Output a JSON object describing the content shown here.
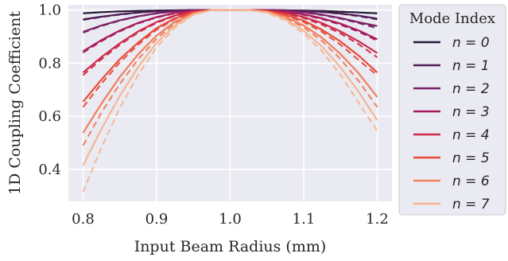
{
  "chart_data": {
    "type": "line",
    "title": "",
    "xlabel": "Input Beam Radius (mm)",
    "ylabel": "1D Coupling Coefficient",
    "xlim": [
      0.78,
      1.22
    ],
    "ylim": [
      0.28,
      1.02
    ],
    "xticks": [
      0.8,
      0.9,
      1.0,
      1.1,
      1.2
    ],
    "xtick_labels": [
      "0.8",
      "0.9",
      "1.0",
      "1.1",
      "1.2"
    ],
    "yticks": [
      0.4,
      0.6,
      0.8,
      1.0
    ],
    "ytick_labels": [
      "0.4",
      "0.6",
      "0.8",
      "1.0"
    ],
    "grid": true,
    "background_color": "#eaeaf2",
    "legend": {
      "title": "Mode Index",
      "placement": "outside-right",
      "entries": [
        "n = 0",
        "n = 1",
        "n = 2",
        "n = 3",
        "n = 4",
        "n = 5",
        "n = 6",
        "n = 7"
      ]
    },
    "x": [
      0.8,
      0.825,
      0.85,
      0.875,
      0.9,
      0.925,
      0.95,
      0.975,
      1.0,
      1.025,
      1.05,
      1.075,
      1.1,
      1.125,
      1.15,
      1.175,
      1.2
    ],
    "series": [
      {
        "name": "n = 0",
        "color": "#231a38",
        "solid": [
          0.988,
          0.992,
          0.995,
          0.997,
          0.998,
          0.999,
          1.0,
          1.0,
          1.0,
          1.0,
          1.0,
          0.999,
          0.998,
          0.997,
          0.994,
          0.991,
          0.988
        ],
        "dashed": [
          0.988,
          0.992,
          0.995,
          0.997,
          0.998,
          0.999,
          1.0,
          1.0,
          1.0,
          1.0,
          1.0,
          0.999,
          0.998,
          0.997,
          0.994,
          0.991,
          0.988
        ]
      },
      {
        "name": "n = 1",
        "color": "#4f1d54",
        "solid": [
          0.965,
          0.975,
          0.984,
          0.991,
          0.995,
          0.998,
          1.0,
          1.0,
          1.0,
          1.0,
          1.0,
          0.999,
          0.997,
          0.993,
          0.987,
          0.979,
          0.968
        ],
        "dashed": [
          0.963,
          0.974,
          0.983,
          0.99,
          0.995,
          0.998,
          1.0,
          1.0,
          1.0,
          1.0,
          1.0,
          0.999,
          0.996,
          0.992,
          0.986,
          0.977,
          0.965
        ]
      },
      {
        "name": "n = 2",
        "color": "#7b2167",
        "solid": [
          0.918,
          0.942,
          0.962,
          0.977,
          0.988,
          0.995,
          0.999,
          1.0,
          1.0,
          1.0,
          1.0,
          0.998,
          0.992,
          0.983,
          0.97,
          0.954,
          0.94
        ],
        "dashed": [
          0.915,
          0.94,
          0.96,
          0.976,
          0.987,
          0.995,
          0.999,
          1.0,
          1.0,
          1.0,
          1.0,
          0.997,
          0.991,
          0.981,
          0.968,
          0.951,
          0.932
        ]
      },
      {
        "name": "n = 3",
        "color": "#a71b5c",
        "solid": [
          0.845,
          0.887,
          0.923,
          0.952,
          0.974,
          0.989,
          0.997,
          1.0,
          1.0,
          1.0,
          0.999,
          0.994,
          0.984,
          0.969,
          0.949,
          0.923,
          0.89
        ],
        "dashed": [
          0.84,
          0.883,
          0.92,
          0.95,
          0.972,
          0.988,
          0.997,
          1.0,
          1.0,
          1.0,
          0.999,
          0.993,
          0.982,
          0.966,
          0.945,
          0.918,
          0.885
        ]
      },
      {
        "name": "n = 4",
        "color": "#cf2b4a",
        "solid": [
          0.765,
          0.823,
          0.875,
          0.92,
          0.955,
          0.98,
          0.995,
          1.0,
          1.0,
          1.0,
          0.998,
          0.989,
          0.974,
          0.951,
          0.92,
          0.882,
          0.838
        ],
        "dashed": [
          0.755,
          0.815,
          0.869,
          0.916,
          0.952,
          0.978,
          0.994,
          1.0,
          1.0,
          1.0,
          0.997,
          0.987,
          0.97,
          0.945,
          0.912,
          0.871,
          0.822
        ]
      },
      {
        "name": "n = 5",
        "color": "#e84b3a",
        "solid": [
          0.655,
          0.738,
          0.815,
          0.878,
          0.932,
          0.969,
          0.992,
          1.0,
          1.0,
          1.0,
          0.996,
          0.983,
          0.96,
          0.926,
          0.882,
          0.828,
          0.765
        ],
        "dashed": [
          0.635,
          0.723,
          0.803,
          0.87,
          0.926,
          0.966,
          0.99,
          1.0,
          1.0,
          1.0,
          0.995,
          0.98,
          0.955,
          0.918,
          0.87,
          0.811,
          0.755
        ]
      },
      {
        "name": "n = 6",
        "color": "#f07f5b",
        "solid": [
          0.538,
          0.648,
          0.748,
          0.834,
          0.904,
          0.956,
          0.988,
          1.0,
          1.0,
          1.0,
          0.994,
          0.975,
          0.942,
          0.896,
          0.835,
          0.761,
          0.673
        ],
        "dashed": [
          0.49,
          0.614,
          0.722,
          0.815,
          0.892,
          0.95,
          0.986,
          1.0,
          1.0,
          1.0,
          0.993,
          0.971,
          0.935,
          0.884,
          0.816,
          0.732,
          0.635
        ]
      },
      {
        "name": "n = 7",
        "color": "#f6b694",
        "solid": [
          0.415,
          0.553,
          0.677,
          0.786,
          0.876,
          0.942,
          0.984,
          1.0,
          1.0,
          1.0,
          0.992,
          0.966,
          0.922,
          0.862,
          0.785,
          0.691,
          0.585
        ],
        "dashed": [
          0.315,
          0.483,
          0.631,
          0.757,
          0.86,
          0.935,
          0.982,
          1.0,
          1.0,
          1.0,
          0.99,
          0.961,
          0.912,
          0.845,
          0.757,
          0.65,
          0.545
        ]
      }
    ]
  }
}
